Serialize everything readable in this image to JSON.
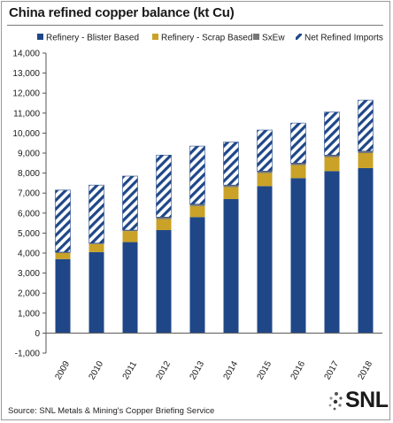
{
  "title": "China refined copper balance (kt Cu)",
  "source": "Source: SNL Metals & Mining's Copper Briefing Service",
  "logo": "SNL",
  "chart_data": {
    "type": "bar",
    "stacked": true,
    "categories": [
      "2009",
      "2010",
      "2011",
      "2012",
      "2013",
      "2014",
      "2015",
      "2016",
      "2017",
      "2018"
    ],
    "series": [
      {
        "name": "Refinery - Blister Based",
        "color": "#1f4788",
        "pattern": "solid",
        "values": [
          3700,
          4050,
          4550,
          5150,
          5800,
          6700,
          7350,
          7750,
          8100,
          8250
        ]
      },
      {
        "name": "Refinery - Scrap Based",
        "color": "#c9a227",
        "pattern": "solid",
        "values": [
          300,
          400,
          550,
          550,
          550,
          600,
          650,
          650,
          700,
          750
        ]
      },
      {
        "name": "SxEw",
        "color": "#777777",
        "pattern": "solid",
        "values": [
          50,
          50,
          50,
          100,
          100,
          100,
          100,
          100,
          100,
          100
        ]
      },
      {
        "name": "Net Refined Imports",
        "color": "#1f4788",
        "pattern": "hatch",
        "values": [
          3100,
          2900,
          2700,
          3100,
          2900,
          2150,
          2050,
          2000,
          2150,
          2550
        ]
      }
    ],
    "y_ticks": [
      "-1,000",
      "0",
      "1,000",
      "2,000",
      "3,000",
      "4,000",
      "5,000",
      "6,000",
      "7,000",
      "8,000",
      "9,000",
      "10,000",
      "11,000",
      "12,000",
      "13,000",
      "14,000"
    ],
    "ylim": [
      -1000,
      14000
    ],
    "grid": false,
    "legend_position": "top"
  }
}
